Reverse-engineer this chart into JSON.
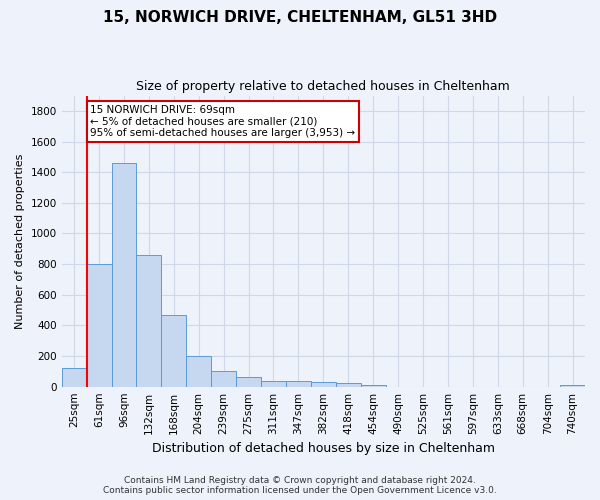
{
  "title": "15, NORWICH DRIVE, CHELTENHAM, GL51 3HD",
  "subtitle": "Size of property relative to detached houses in Cheltenham",
  "xlabel": "Distribution of detached houses by size in Cheltenham",
  "ylabel": "Number of detached properties",
  "footer_line1": "Contains HM Land Registry data © Crown copyright and database right 2024.",
  "footer_line2": "Contains public sector information licensed under the Open Government Licence v3.0.",
  "categories": [
    "25sqm",
    "61sqm",
    "96sqm",
    "132sqm",
    "168sqm",
    "204sqm",
    "239sqm",
    "275sqm",
    "311sqm",
    "347sqm",
    "382sqm",
    "418sqm",
    "454sqm",
    "490sqm",
    "525sqm",
    "561sqm",
    "597sqm",
    "633sqm",
    "668sqm",
    "704sqm",
    "740sqm"
  ],
  "values": [
    120,
    800,
    1460,
    860,
    470,
    200,
    100,
    65,
    40,
    35,
    30,
    25,
    10,
    0,
    0,
    0,
    0,
    0,
    0,
    0,
    10
  ],
  "bar_color": "#c5d8f0",
  "bar_edge_color": "#5b9bd5",
  "annotation_text_line1": "15 NORWICH DRIVE: 69sqm",
  "annotation_text_line2": "← 5% of detached houses are smaller (210)",
  "annotation_text_line3": "95% of semi-detached houses are larger (3,953) →",
  "annotation_box_color": "#ffffff",
  "annotation_box_edge_color": "#cc0000",
  "red_line_x": 0.5,
  "ylim": [
    0,
    1900
  ],
  "yticks": [
    0,
    200,
    400,
    600,
    800,
    1000,
    1200,
    1400,
    1600,
    1800
  ],
  "grid_color": "#d0d8e8",
  "background_color": "#eef2fa",
  "axes_background": "#eef2fa",
  "title_fontsize": 11,
  "subtitle_fontsize": 9,
  "ylabel_fontsize": 8,
  "xlabel_fontsize": 9,
  "tick_fontsize": 7.5,
  "footer_fontsize": 6.5
}
